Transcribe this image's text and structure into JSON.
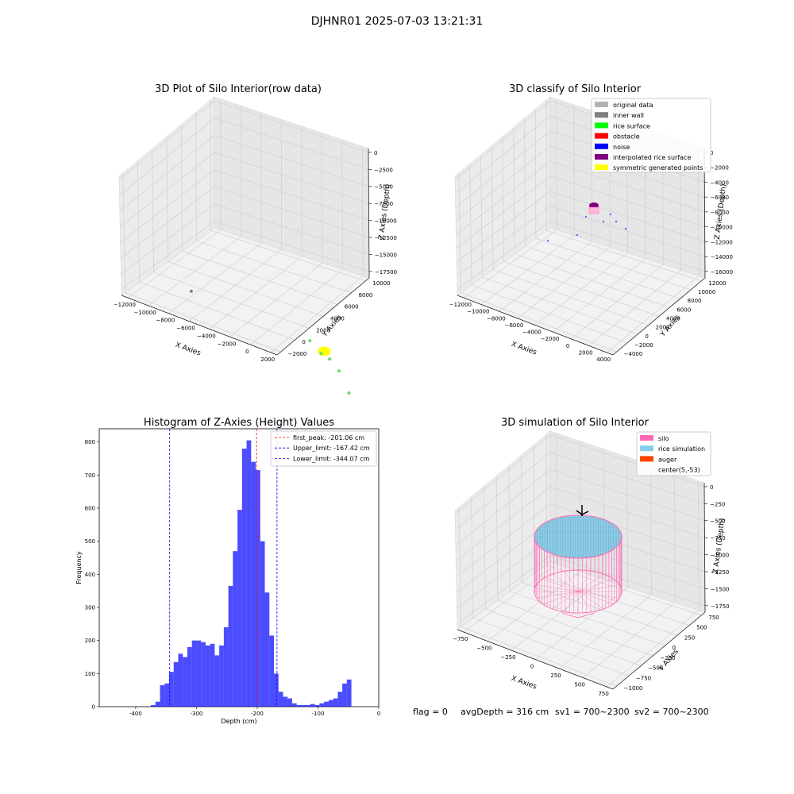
{
  "figure_title": "DJHNR01 2025-07-03 13:21:31",
  "footer": {
    "flag": "flag = 0",
    "avg_depth": "avgDepth = 316 cm",
    "sv1": "sv1 = 700~2300",
    "sv2": "sv2 = 700~2300"
  },
  "colors": {
    "original_data": "#b3b3b3",
    "inner_wall": "#808080",
    "rice_surface": "#00ff00",
    "obstacle": "#ff0000",
    "noise": "#0000ff",
    "interpolated": "#800080",
    "symmetric": "#ffff00",
    "hist_bar": "#0000ff",
    "peak_line": "#ff0000",
    "limit_line": "#0000ff",
    "silo": "#ff69b4",
    "rice_sim": "#87ceeb",
    "auger": "#ff4500"
  },
  "chart_data": [
    {
      "type": "scatter",
      "title": "3D Plot of Silo Interior(row data)",
      "xlabel": "X Axies",
      "ylabel": "Y Axies",
      "zlabel": "Z Axies (Depth)",
      "x_ticks": [
        "−12000",
        "−10000",
        "−8000",
        "−6000",
        "−4000",
        "−2000",
        "0",
        "2000"
      ],
      "y_ticks": [
        "−2000",
        "0",
        "2000",
        "4000",
        "6000",
        "8000",
        "10000"
      ],
      "z_ticks": [
        "0",
        "−2500",
        "−5000",
        "−7500",
        "−10000",
        "−12500",
        "−15000",
        "−17500"
      ],
      "points": [
        {
          "x": -500,
          "y": 300,
          "z": -9500,
          "cls": "symmetric"
        },
        {
          "x": 800,
          "y": 1500,
          "z": -11000,
          "cls": "rice_surface"
        },
        {
          "x": -1500,
          "y": 800,
          "z": -9000,
          "cls": "rice_surface"
        },
        {
          "x": 2000,
          "y": 2000,
          "z": -12500,
          "cls": "rice_surface"
        },
        {
          "x": -200,
          "y": 1200,
          "z": -10500,
          "cls": "rice_surface"
        },
        {
          "x": 500,
          "y": -1500,
          "z": -13500,
          "cls": "rice_surface"
        },
        {
          "x": -9000,
          "y": 6000,
          "z": -11000,
          "cls": "inner_wall"
        }
      ]
    },
    {
      "type": "scatter",
      "title": "3D classify of Silo Interior",
      "xlabel": "X Axies",
      "ylabel": "Y Axies",
      "zlabel": "Z Axies (Depth)",
      "x_ticks": [
        "−12000",
        "−10000",
        "−8000",
        "−6000",
        "−4000",
        "−2000",
        "0",
        "2000",
        "4000"
      ],
      "y_ticks": [
        "−4000",
        "−2000",
        "0",
        "2000",
        "4000",
        "6000",
        "8000",
        "10000",
        "12000"
      ],
      "z_ticks": [
        "0",
        "−2000",
        "−4000",
        "−6000",
        "−8000",
        "−10000",
        "−12000",
        "−14000",
        "−16000"
      ],
      "legend": [
        {
          "label": "original data",
          "cls": "original_data"
        },
        {
          "label": "inner wall",
          "cls": "inner_wall"
        },
        {
          "label": "rice surface",
          "cls": "rice_surface"
        },
        {
          "label": "obstacle",
          "cls": "obstacle"
        },
        {
          "label": "noise",
          "cls": "noise"
        },
        {
          "label": "interpolated rice surface",
          "cls": "interpolated"
        },
        {
          "label": "symmetric generated points",
          "cls": "symmetric"
        }
      ]
    },
    {
      "type": "bar",
      "title": "Histogram of Z-Axies (Height) Values",
      "xlabel": "Depth (cm)",
      "ylabel": "Frequency",
      "xlim": [
        -460,
        0
      ],
      "ylim": [
        0,
        840
      ],
      "x_ticks": [
        -400,
        -300,
        -200,
        -100,
        0
      ],
      "y_ticks": [
        0,
        100,
        200,
        300,
        400,
        500,
        600,
        700,
        800
      ],
      "bin_width": 7.5,
      "bins_start": [
        -375,
        -367.5,
        -360,
        -352.5,
        -345,
        -337.5,
        -330,
        -322.5,
        -315,
        -307.5,
        -300,
        -292.5,
        -285,
        -277.5,
        -270,
        -262.5,
        -255,
        -247.5,
        -240,
        -232.5,
        -225,
        -217.5,
        -210,
        -202.5,
        -195,
        -187.5,
        -180,
        -172.5,
        -165,
        -157.5,
        -150,
        -142.5,
        -135,
        -127.5,
        -120,
        -112.5,
        -105,
        -97.5,
        -90,
        -82.5,
        -75,
        -67.5,
        -60,
        -52.5,
        -45,
        -37.5,
        -30,
        -22.5
      ],
      "values": [
        5,
        15,
        65,
        70,
        105,
        135,
        160,
        150,
        180,
        200,
        200,
        195,
        185,
        190,
        155,
        185,
        240,
        365,
        470,
        595,
        780,
        805,
        740,
        715,
        500,
        345,
        215,
        100,
        45,
        30,
        25,
        10,
        5,
        5,
        5,
        8,
        5,
        10,
        15,
        20,
        25,
        45,
        70,
        82,
        0,
        0,
        0,
        0
      ],
      "lines": [
        {
          "label": "first_peak: -201.06 cm",
          "x": -201.06,
          "cls": "peak_line"
        },
        {
          "label": "Upper_limit: -167.42 cm",
          "x": -167.42,
          "cls": "limit_line"
        },
        {
          "label": "Lower_limit: -344.07 cm",
          "x": -344.07,
          "cls": "limit_line"
        }
      ]
    },
    {
      "type": "scatter",
      "title": "3D simulation of Silo Interior",
      "xlabel": "X Axies",
      "ylabel": "Y Axies",
      "zlabel": "Z Axies (Depth)",
      "x_ticks": [
        "−750",
        "−500",
        "−250",
        "0",
        "250",
        "500",
        "750"
      ],
      "y_ticks": [
        "−1000",
        "−750",
        "−500",
        "−250",
        "0",
        "250",
        "500",
        "750"
      ],
      "z_ticks": [
        "0",
        "−250",
        "−500",
        "−750",
        "−1000",
        "−1250",
        "−1500",
        "−1750"
      ],
      "legend": [
        {
          "label": "silo",
          "cls": "silo"
        },
        {
          "label": "rice simulation",
          "cls": "rice_sim"
        },
        {
          "label": "auger",
          "cls": "auger"
        },
        {
          "label": "center(5,-53)",
          "cls": ""
        }
      ]
    }
  ]
}
